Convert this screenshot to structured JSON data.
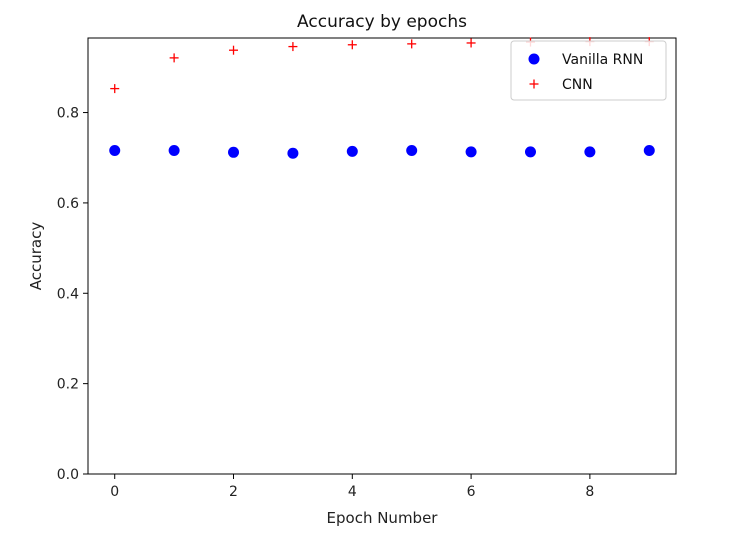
{
  "chart_data": {
    "type": "scatter",
    "title": "Accuracy by epochs",
    "xlabel": "Epoch Number",
    "ylabel": "Accuracy",
    "xlim": [
      -0.45,
      9.45
    ],
    "ylim": [
      0.0,
      0.965
    ],
    "x_ticks": [
      0,
      2,
      4,
      6,
      8
    ],
    "y_ticks": [
      0.0,
      0.2,
      0.4,
      0.6,
      0.8
    ],
    "grid": false,
    "legend_position": "top-right",
    "x": [
      0,
      1,
      2,
      3,
      4,
      5,
      6,
      7,
      8,
      9
    ],
    "series": [
      {
        "name": "Vanilla RNN",
        "marker": "circle",
        "color": "#0000ff",
        "values": [
          0.716,
          0.716,
          0.712,
          0.71,
          0.714,
          0.716,
          0.713,
          0.713,
          0.713,
          0.716
        ]
      },
      {
        "name": "CNN",
        "marker": "plus",
        "color": "#ff0000",
        "values": [
          0.853,
          0.921,
          0.938,
          0.946,
          0.95,
          0.952,
          0.954,
          0.956,
          0.957,
          0.957
        ]
      }
    ]
  }
}
